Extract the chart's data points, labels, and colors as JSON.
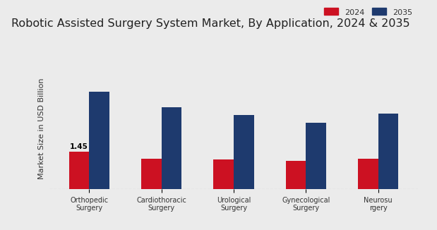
{
  "title": "Robotic Assisted Surgery System Market, By Application, 2024 & 2035",
  "ylabel": "Market Size in USD Billion",
  "categories": [
    "Orthopedic\nSurgery",
    "Cardiothoracic\nSurgery",
    "Urological\nSurgery",
    "Gynecological\nSurgery",
    "Neurosu\nrgery"
  ],
  "values_2024": [
    1.45,
    1.2,
    1.15,
    1.1,
    1.18
  ],
  "values_2035": [
    3.8,
    3.2,
    2.9,
    2.6,
    2.95
  ],
  "color_2024": "#cc1122",
  "color_2035": "#1e3a6e",
  "bar_annotation": "1.45",
  "background_color": "#ebebeb",
  "legend_2024": "2024",
  "legend_2035": "2035",
  "ylim": [
    0,
    4.8
  ],
  "bar_width": 0.28,
  "title_fontsize": 11.5,
  "label_fontsize": 8,
  "tick_fontsize": 7,
  "footer_color": "#cc1122"
}
